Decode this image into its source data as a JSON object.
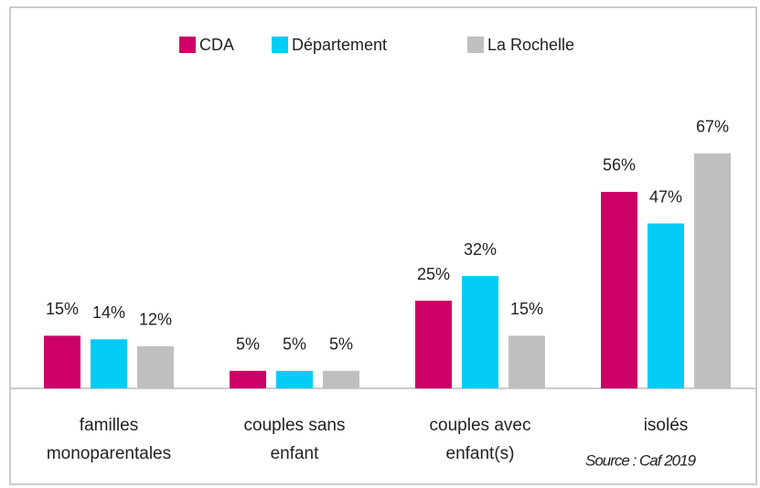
{
  "chart_data": {
    "type": "bar",
    "categories": [
      [
        "familles",
        "monoparentales"
      ],
      [
        "couples sans",
        "enfant"
      ],
      [
        "couples avec",
        "enfant(s)"
      ],
      [
        "isolés"
      ]
    ],
    "series": [
      {
        "name": "CDA",
        "color": "#cc0066",
        "values": [
          15,
          5,
          25,
          56
        ],
        "value_labels": [
          "15%",
          "5%",
          "25%",
          "56%"
        ]
      },
      {
        "name": "Département",
        "color": "#00ccf5",
        "values": [
          14,
          5,
          32,
          47
        ],
        "value_labels": [
          "14%",
          "5%",
          "32%",
          "47%"
        ]
      },
      {
        "name": "La Rochelle",
        "color": "#bfbfbf",
        "values": [
          12,
          5,
          15,
          67
        ],
        "value_labels": [
          "12%",
          "5%",
          "15%",
          "67%"
        ]
      }
    ],
    "annotation": "Source : Caf 2019",
    "legend": "top"
  }
}
